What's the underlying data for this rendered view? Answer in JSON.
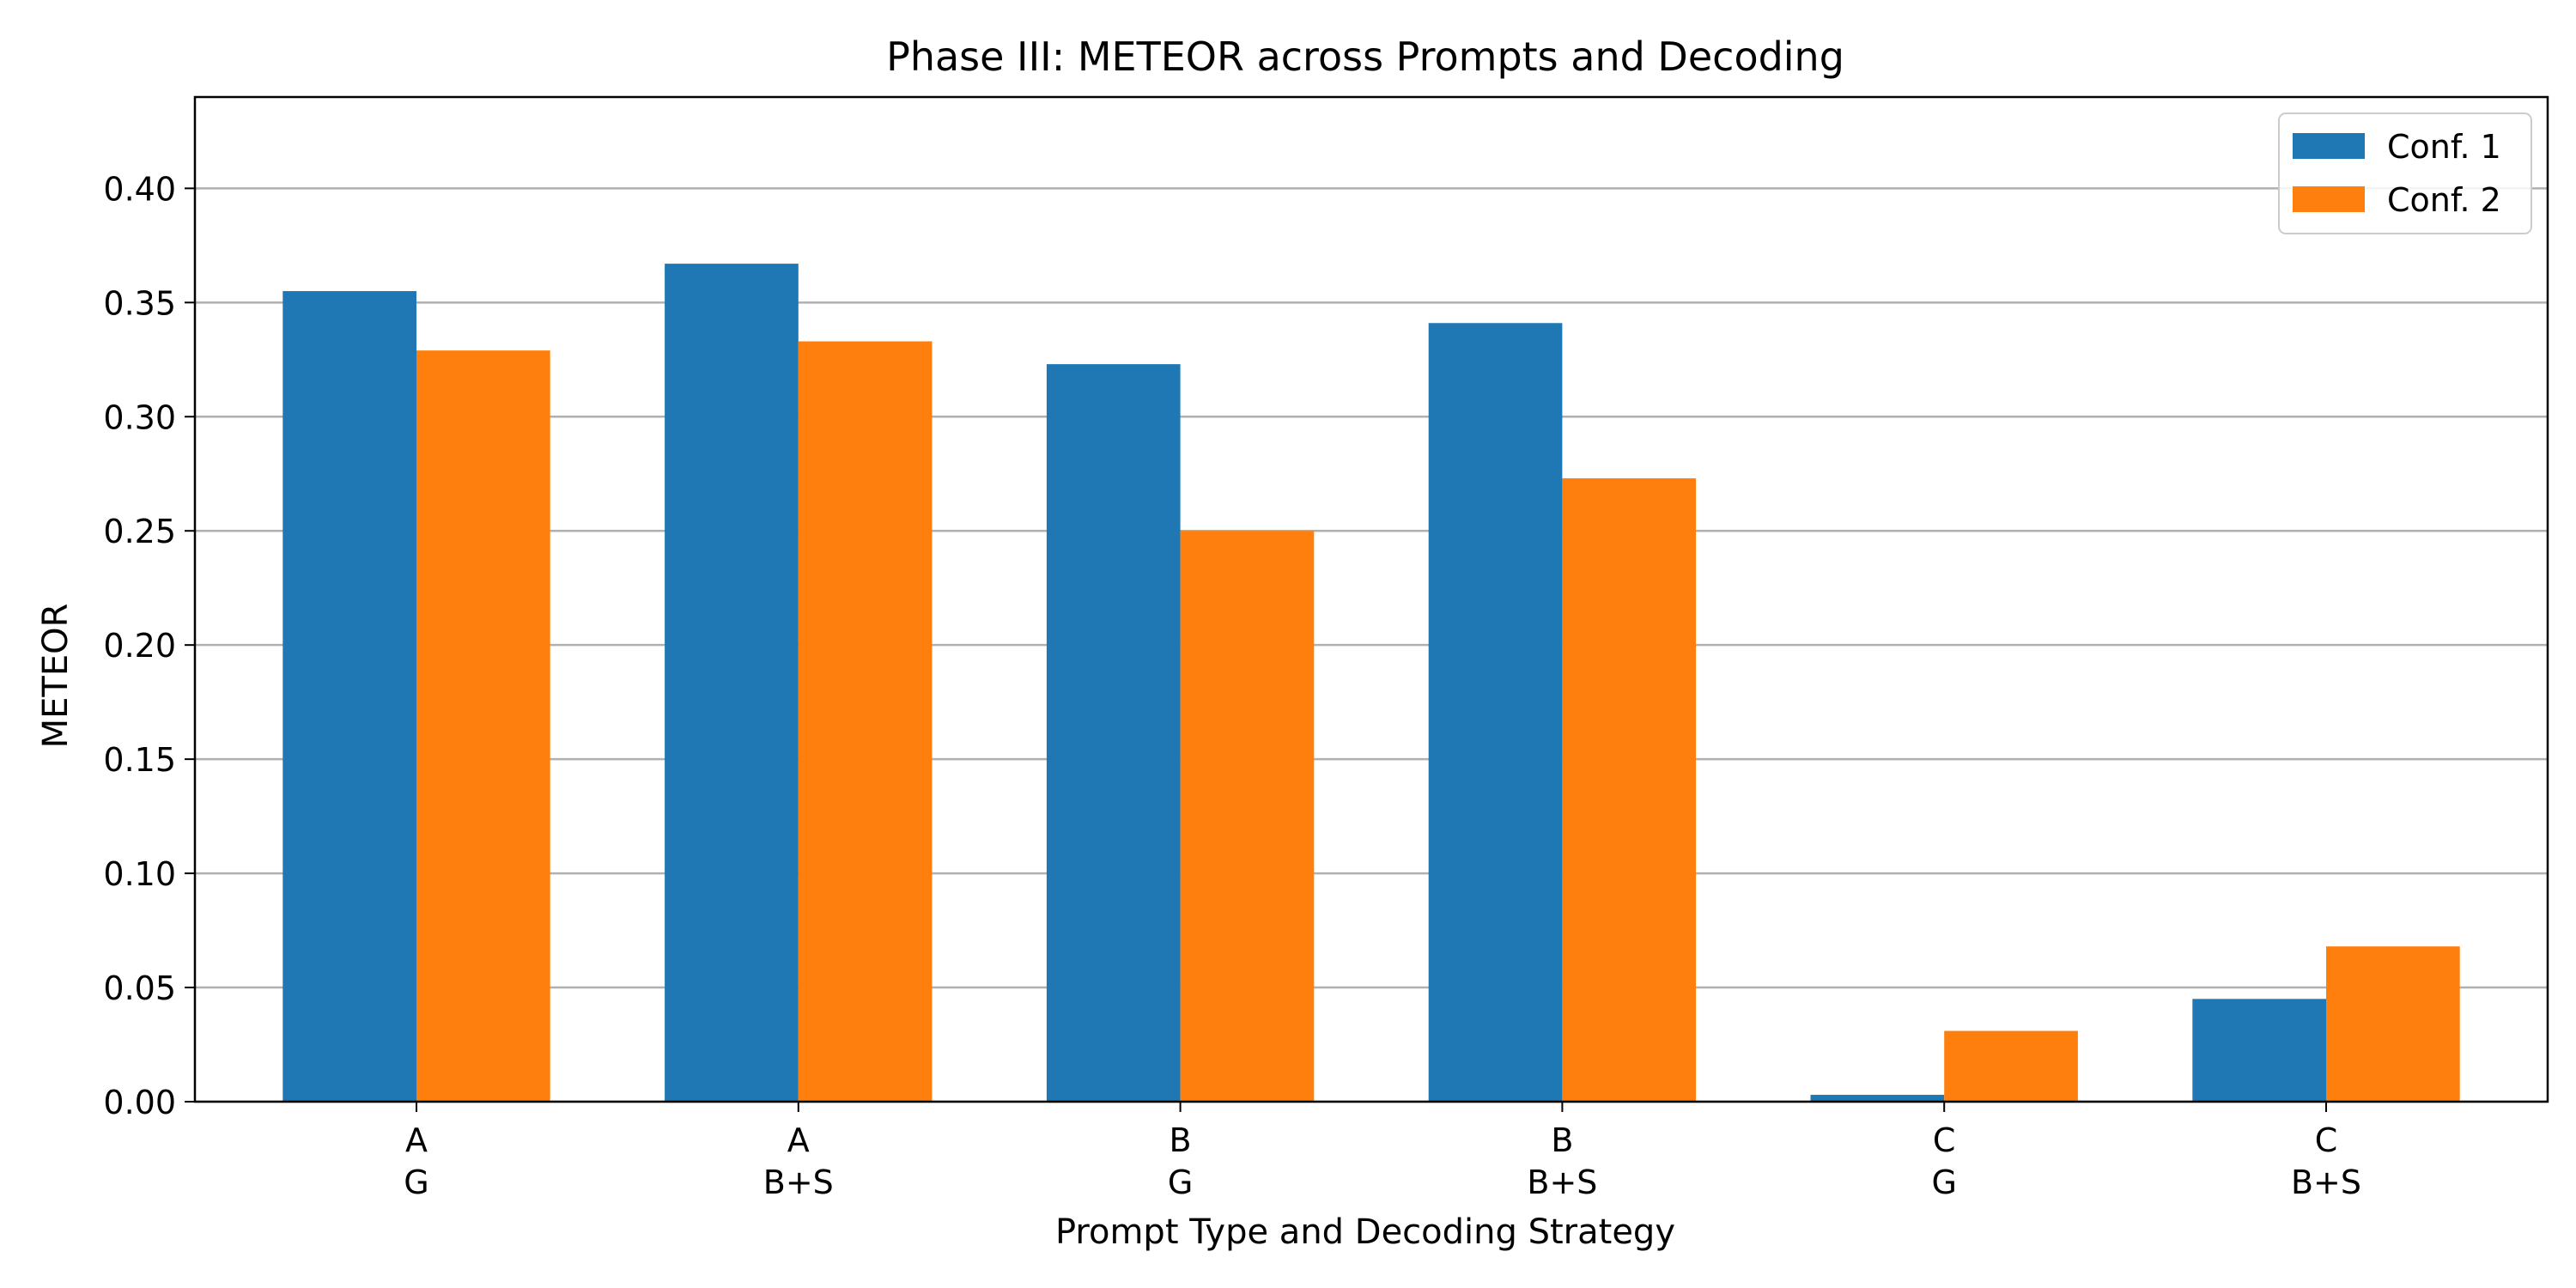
{
  "chart_data": {
    "type": "bar",
    "title": "Phase III: METEOR across Prompts and Decoding",
    "xlabel": "Prompt Type and Decoding Strategy",
    "ylabel": "METEOR",
    "categories": [
      [
        "A",
        "G"
      ],
      [
        "A",
        "B+S"
      ],
      [
        "B",
        "G"
      ],
      [
        "B",
        "B+S"
      ],
      [
        "C",
        "G"
      ],
      [
        "C",
        "B+S"
      ]
    ],
    "series": [
      {
        "name": "Conf. 1",
        "color": "#1f77b4",
        "values": [
          0.355,
          0.367,
          0.323,
          0.341,
          0.003,
          0.045
        ]
      },
      {
        "name": "Conf. 2",
        "color": "#ff7f0e",
        "values": [
          0.329,
          0.333,
          0.25,
          0.273,
          0.031,
          0.068
        ]
      }
    ],
    "ylim": [
      0,
      0.44
    ],
    "yticks": [
      "0.00",
      "0.05",
      "0.10",
      "0.15",
      "0.20",
      "0.25",
      "0.30",
      "0.35",
      "0.40"
    ],
    "grid": "horizontal",
    "legend_position": "top-right"
  }
}
